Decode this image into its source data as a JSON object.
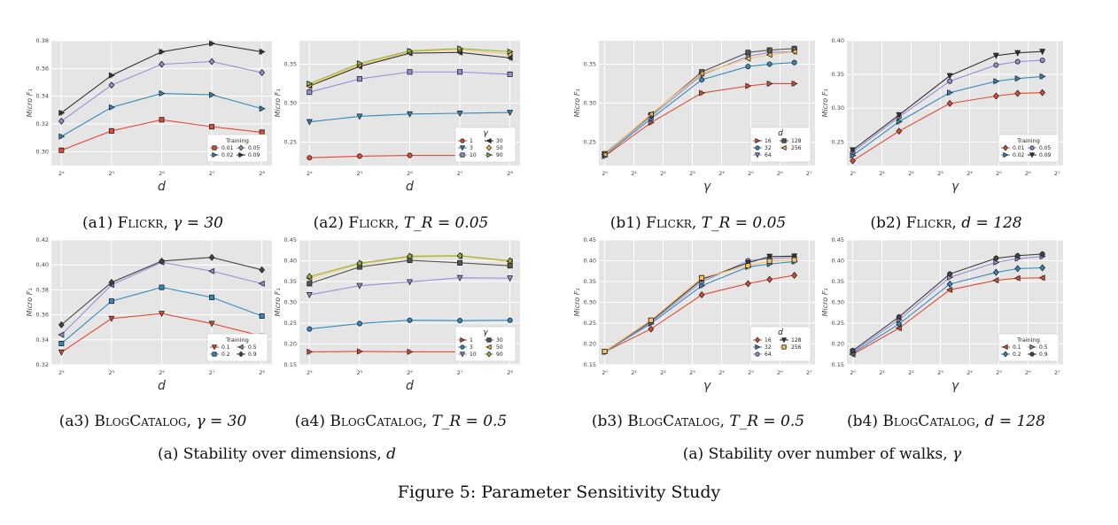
{
  "figure_title": "Figure 5: Parameter Sensitivity Study",
  "group_captions": [
    {
      "text": "(a) Stability over dimensions, ",
      "var": "d"
    },
    {
      "text": "(a) Stability over number of walks, ",
      "var": "γ"
    }
  ],
  "colors": {
    "plot_bg": "#e5e5e5",
    "grid": "#ffffff"
  },
  "x_tick_labels": {
    "dims": [
      "2⁴",
      "2⁵",
      "2⁶",
      "2⁷",
      "2⁸"
    ],
    "walks": [
      "2⁰",
      "2¹",
      "2²",
      "2³",
      "2⁴",
      "2⁵",
      "2⁶",
      "2⁷"
    ]
  },
  "y_axis_label": "Micro F₁",
  "chart_data": [
    {
      "id": "a1",
      "type": "line",
      "caption_label": "(a1) ",
      "caption_name": "Flickr",
      "caption_math": "γ = 30",
      "xlabel": "d",
      "xscale": "log2",
      "x": [
        16,
        32,
        64,
        128,
        256
      ],
      "ylim": [
        0.29,
        0.38
      ],
      "yticks": [
        "0.30",
        "0.32",
        "0.34",
        "0.36",
        "0.38"
      ],
      "ytick_values": [
        0.3,
        0.32,
        0.34,
        0.36,
        0.38
      ],
      "legend_title": "Training",
      "legend_loc": "lower-right",
      "legend_cols": 2,
      "series": [
        {
          "name": "0.01",
          "color": "#e24a33",
          "marker": "square",
          "values": [
            0.301,
            0.315,
            0.323,
            0.318,
            0.314
          ]
        },
        {
          "name": "0.02",
          "color": "#348abd",
          "marker": "tri-right",
          "values": [
            0.311,
            0.332,
            0.342,
            0.341,
            0.331
          ]
        },
        {
          "name": "0.05",
          "color": "#988ed5",
          "marker": "diamond",
          "values": [
            0.322,
            0.348,
            0.363,
            0.365,
            0.357
          ]
        },
        {
          "name": "0.09",
          "color": "#333333",
          "marker": "tri-right",
          "values": [
            0.328,
            0.355,
            0.372,
            0.378,
            0.372
          ]
        }
      ]
    },
    {
      "id": "a2",
      "type": "line",
      "caption_label": "(a2) ",
      "caption_name": "Flickr",
      "caption_math": "T_R = 0.05",
      "xlabel": "d",
      "xscale": "log2",
      "x": [
        16,
        32,
        64,
        128,
        256
      ],
      "ylim": [
        0.22,
        0.38
      ],
      "yticks": [
        "0.25",
        "0.30",
        "0.35"
      ],
      "ytick_values": [
        0.25,
        0.3,
        0.35
      ],
      "legend_title": "γ",
      "legend_loc": "lower-right",
      "legend_cols": 2,
      "series": [
        {
          "name": "1",
          "color": "#e24a33",
          "marker": "circle",
          "values": [
            0.23,
            0.232,
            0.233,
            0.233,
            0.234
          ]
        },
        {
          "name": "3",
          "color": "#348abd",
          "marker": "tri-down",
          "values": [
            0.276,
            0.283,
            0.286,
            0.287,
            0.288
          ]
        },
        {
          "name": "10",
          "color": "#988ed5",
          "marker": "square",
          "values": [
            0.314,
            0.331,
            0.34,
            0.34,
            0.337
          ]
        },
        {
          "name": "30",
          "color": "#333333",
          "marker": "tri-left",
          "values": [
            0.322,
            0.347,
            0.364,
            0.365,
            0.358
          ]
        },
        {
          "name": "50",
          "color": "#fbc15e",
          "marker": "diamond",
          "values": [
            0.323,
            0.349,
            0.366,
            0.369,
            0.363
          ]
        },
        {
          "name": "90",
          "color": "#8eba42",
          "marker": "tri-right",
          "values": [
            0.325,
            0.351,
            0.367,
            0.37,
            0.366
          ]
        }
      ]
    },
    {
      "id": "b1",
      "type": "line",
      "caption_label": "(b1) ",
      "caption_name": "Flickr",
      "caption_math": "T_R = 0.05",
      "xlabel": "γ",
      "xscale": "log2",
      "x": [
        1,
        3,
        10,
        30,
        50,
        90
      ],
      "ylim": [
        0.22,
        0.38
      ],
      "yticks": [
        "0.25",
        "0.30",
        "0.35"
      ],
      "ytick_values": [
        0.25,
        0.3,
        0.35
      ],
      "legend_title": "d",
      "legend_loc": "lower-right",
      "legend_cols": 2,
      "series": [
        {
          "name": "16",
          "color": "#e24a33",
          "marker": "tri-right",
          "values": [
            0.232,
            0.275,
            0.313,
            0.322,
            0.325,
            0.325
          ]
        },
        {
          "name": "32",
          "color": "#348abd",
          "marker": "circle",
          "values": [
            0.233,
            0.28,
            0.33,
            0.347,
            0.35,
            0.352
          ]
        },
        {
          "name": "64",
          "color": "#988ed5",
          "marker": "tri-down",
          "values": [
            0.234,
            0.283,
            0.336,
            0.36,
            0.365,
            0.366
          ]
        },
        {
          "name": "128",
          "color": "#555555",
          "marker": "square",
          "values": [
            0.235,
            0.285,
            0.34,
            0.365,
            0.368,
            0.37
          ]
        },
        {
          "name": "256",
          "color": "#fbc15e",
          "marker": "tri-left",
          "values": [
            0.234,
            0.286,
            0.338,
            0.357,
            0.362,
            0.366
          ]
        }
      ]
    },
    {
      "id": "b2",
      "type": "line",
      "caption_label": "(b2) ",
      "caption_name": "Flickr",
      "caption_math": "d = 128",
      "xlabel": "γ",
      "xscale": "log2",
      "x": [
        1,
        3,
        10,
        30,
        50,
        90
      ],
      "ylim": [
        0.215,
        0.4
      ],
      "yticks": [
        "0.25",
        "0.30",
        "0.35",
        "0.40"
      ],
      "ytick_values": [
        0.25,
        0.3,
        0.35,
        0.4
      ],
      "legend_title": "Training",
      "legend_loc": "lower-right",
      "legend_cols": 2,
      "series": [
        {
          "name": "0.01",
          "color": "#e24a33",
          "marker": "diamond",
          "values": [
            0.222,
            0.266,
            0.307,
            0.318,
            0.322,
            0.323
          ]
        },
        {
          "name": "0.02",
          "color": "#348abd",
          "marker": "tri-right",
          "values": [
            0.23,
            0.28,
            0.323,
            0.34,
            0.344,
            0.347
          ]
        },
        {
          "name": "0.05",
          "color": "#988ed5",
          "marker": "circle",
          "values": [
            0.235,
            0.287,
            0.34,
            0.364,
            0.369,
            0.371
          ]
        },
        {
          "name": "0.09",
          "color": "#333333",
          "marker": "tri-down",
          "values": [
            0.238,
            0.29,
            0.348,
            0.378,
            0.382,
            0.384
          ]
        }
      ]
    },
    {
      "id": "a3",
      "type": "line",
      "caption_label": "(a3) ",
      "caption_name": "BlogCatalog",
      "caption_math": "γ = 30",
      "xlabel": "d",
      "xscale": "log2",
      "x": [
        16,
        32,
        64,
        128,
        256
      ],
      "ylim": [
        0.32,
        0.42
      ],
      "yticks": [
        "0.32",
        "0.34",
        "0.36",
        "0.38",
        "0.40",
        "0.42"
      ],
      "ytick_values": [
        0.32,
        0.34,
        0.36,
        0.38,
        0.4,
        0.42
      ],
      "legend_title": "Training",
      "legend_loc": "lower-right",
      "legend_cols": 2,
      "series": [
        {
          "name": "0.1",
          "color": "#e24a33",
          "marker": "tri-down",
          "values": [
            0.33,
            0.357,
            0.361,
            0.353,
            0.343
          ]
        },
        {
          "name": "0.2",
          "color": "#348abd",
          "marker": "square",
          "values": [
            0.337,
            0.371,
            0.382,
            0.374,
            0.359
          ]
        },
        {
          "name": "0.5",
          "color": "#988ed5",
          "marker": "tri-left",
          "values": [
            0.344,
            0.384,
            0.402,
            0.395,
            0.385
          ]
        },
        {
          "name": "0.9",
          "color": "#444444",
          "marker": "diamond",
          "values": [
            0.352,
            0.386,
            0.403,
            0.406,
            0.396
          ]
        }
      ]
    },
    {
      "id": "a4",
      "type": "line",
      "caption_label": "(a4) ",
      "caption_name": "BlogCatalog",
      "caption_math": "T_R = 0.5",
      "xlabel": "d",
      "xscale": "log2",
      "x": [
        16,
        32,
        64,
        128,
        256
      ],
      "ylim": [
        0.15,
        0.45
      ],
      "yticks": [
        "0.15",
        "0.20",
        "0.25",
        "0.30",
        "0.35",
        "0.40",
        "0.45"
      ],
      "ytick_values": [
        0.15,
        0.2,
        0.25,
        0.3,
        0.35,
        0.4,
        0.45
      ],
      "legend_title": "γ",
      "legend_loc": "lower-right",
      "legend_cols": 2,
      "series": [
        {
          "name": "1",
          "color": "#e24a33",
          "marker": "tri-right",
          "values": [
            0.181,
            0.182,
            0.181,
            0.181,
            0.181
          ]
        },
        {
          "name": "3",
          "color": "#348abd",
          "marker": "circle",
          "values": [
            0.236,
            0.249,
            0.257,
            0.256,
            0.257
          ]
        },
        {
          "name": "10",
          "color": "#988ed5",
          "marker": "tri-down",
          "values": [
            0.318,
            0.34,
            0.349,
            0.359,
            0.358
          ]
        },
        {
          "name": "30",
          "color": "#555555",
          "marker": "square",
          "values": [
            0.345,
            0.385,
            0.401,
            0.395,
            0.388
          ]
        },
        {
          "name": "50",
          "color": "#fbc15e",
          "marker": "tri-left",
          "values": [
            0.358,
            0.392,
            0.409,
            0.411,
            0.398
          ]
        },
        {
          "name": "90",
          "color": "#8eba42",
          "marker": "diamond",
          "values": [
            0.362,
            0.394,
            0.411,
            0.412,
            0.4
          ]
        }
      ]
    },
    {
      "id": "b3",
      "type": "line",
      "caption_label": "(b3) ",
      "caption_name": "BlogCatalog",
      "caption_math": "T_R = 0.5",
      "xlabel": "γ",
      "xscale": "log2",
      "x": [
        1,
        3,
        10,
        30,
        50,
        90
      ],
      "ylim": [
        0.15,
        0.45
      ],
      "yticks": [
        "0.15",
        "0.20",
        "0.25",
        "0.30",
        "0.35",
        "0.40",
        "0.45"
      ],
      "ytick_values": [
        0.15,
        0.2,
        0.25,
        0.3,
        0.35,
        0.4,
        0.45
      ],
      "legend_title": "d",
      "legend_loc": "lower-right",
      "legend_cols": 2,
      "series": [
        {
          "name": "16",
          "color": "#e24a33",
          "marker": "diamond",
          "values": [
            0.181,
            0.236,
            0.318,
            0.345,
            0.355,
            0.365
          ]
        },
        {
          "name": "32",
          "color": "#348abd",
          "marker": "tri-right",
          "values": [
            0.181,
            0.249,
            0.34,
            0.385,
            0.392,
            0.398
          ]
        },
        {
          "name": "64",
          "color": "#988ed5",
          "marker": "circle",
          "values": [
            0.182,
            0.252,
            0.349,
            0.4,
            0.405,
            0.408
          ]
        },
        {
          "name": "128",
          "color": "#333333",
          "marker": "tri-down",
          "values": [
            0.182,
            0.255,
            0.355,
            0.395,
            0.41,
            0.411
          ]
        },
        {
          "name": "256",
          "color": "#fbc15e",
          "marker": "square",
          "values": [
            0.182,
            0.257,
            0.359,
            0.388,
            0.399,
            0.402
          ]
        }
      ]
    },
    {
      "id": "b4",
      "type": "line",
      "caption_label": "(b4) ",
      "caption_name": "BlogCatalog",
      "caption_math": "d = 128",
      "xlabel": "γ",
      "xscale": "log2",
      "x": [
        1,
        3,
        10,
        30,
        50,
        90
      ],
      "ylim": [
        0.15,
        0.45
      ],
      "yticks": [
        "0.15",
        "0.20",
        "0.25",
        "0.30",
        "0.35",
        "0.40",
        "0.45"
      ],
      "ytick_values": [
        0.15,
        0.2,
        0.25,
        0.3,
        0.35,
        0.4,
        0.45
      ],
      "legend_title": "Training",
      "legend_loc": "lower-right",
      "legend_cols": 2,
      "series": [
        {
          "name": "0.1",
          "color": "#e24a33",
          "marker": "tri-left",
          "values": [
            0.175,
            0.238,
            0.33,
            0.353,
            0.358,
            0.359
          ]
        },
        {
          "name": "0.2",
          "color": "#348abd",
          "marker": "diamond",
          "values": [
            0.178,
            0.248,
            0.344,
            0.372,
            0.381,
            0.383
          ]
        },
        {
          "name": "0.5",
          "color": "#988ed5",
          "marker": "tri-right",
          "values": [
            0.181,
            0.258,
            0.36,
            0.396,
            0.405,
            0.41
          ]
        },
        {
          "name": "0.9",
          "color": "#444444",
          "marker": "circle",
          "values": [
            0.184,
            0.265,
            0.368,
            0.406,
            0.412,
            0.416
          ]
        }
      ]
    }
  ]
}
